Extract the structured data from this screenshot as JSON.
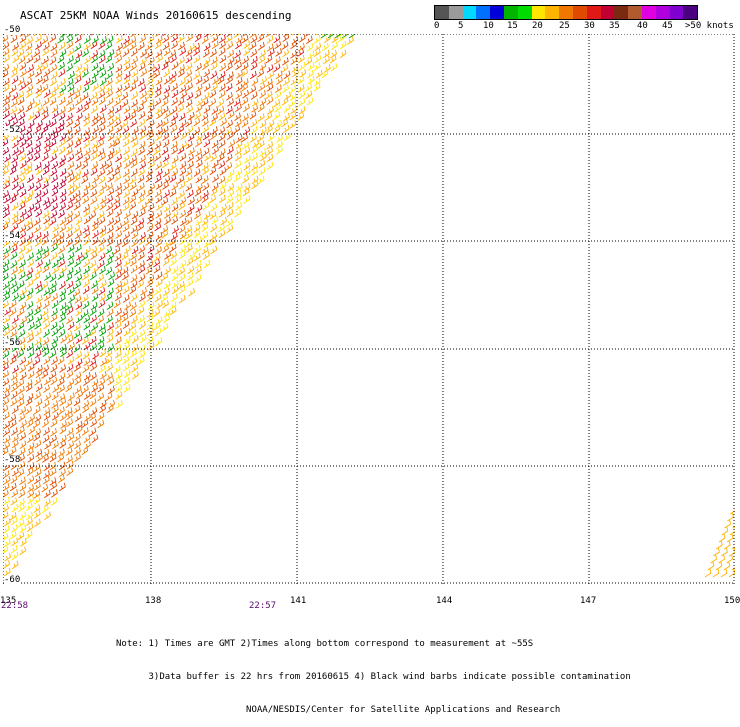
{
  "title": "ASCAT 25KM NOAA Winds 20160615 descending",
  "scale": {
    "colors": [
      "#555555",
      "#9a9a9a",
      "#00d8ff",
      "#0070ff",
      "#0000d8",
      "#00b400",
      "#00dc00",
      "#ffe600",
      "#ffb400",
      "#f07800",
      "#e04a00",
      "#e01818",
      "#c00030",
      "#7a2a10",
      "#b05a30",
      "#e000e0",
      "#b000e0",
      "#8000d0",
      "#4a0080"
    ],
    "labels": [
      "0",
      "5",
      "10",
      "15",
      "20",
      "25",
      "30",
      "35",
      "40",
      "45",
      ">50 knots"
    ]
  },
  "map": {
    "lat_labels": [
      "-50",
      "-52",
      "-54",
      "-56",
      "-58",
      "-60"
    ],
    "lon_labels": [
      "135",
      "138",
      "141",
      "144",
      "147",
      "150"
    ],
    "time_labels": [
      "22:58",
      "22:57"
    ]
  },
  "notes": [
    "Note: 1) Times are GMT 2)Times along bottom correspond to measurement at ~55S",
    "      3)Data buffer is 22 hrs from 20160615 4) Black wind barbs indicate possible contamination",
    "                        NOAA/NESDIS/Center for Satellite Applications and Research"
  ]
}
